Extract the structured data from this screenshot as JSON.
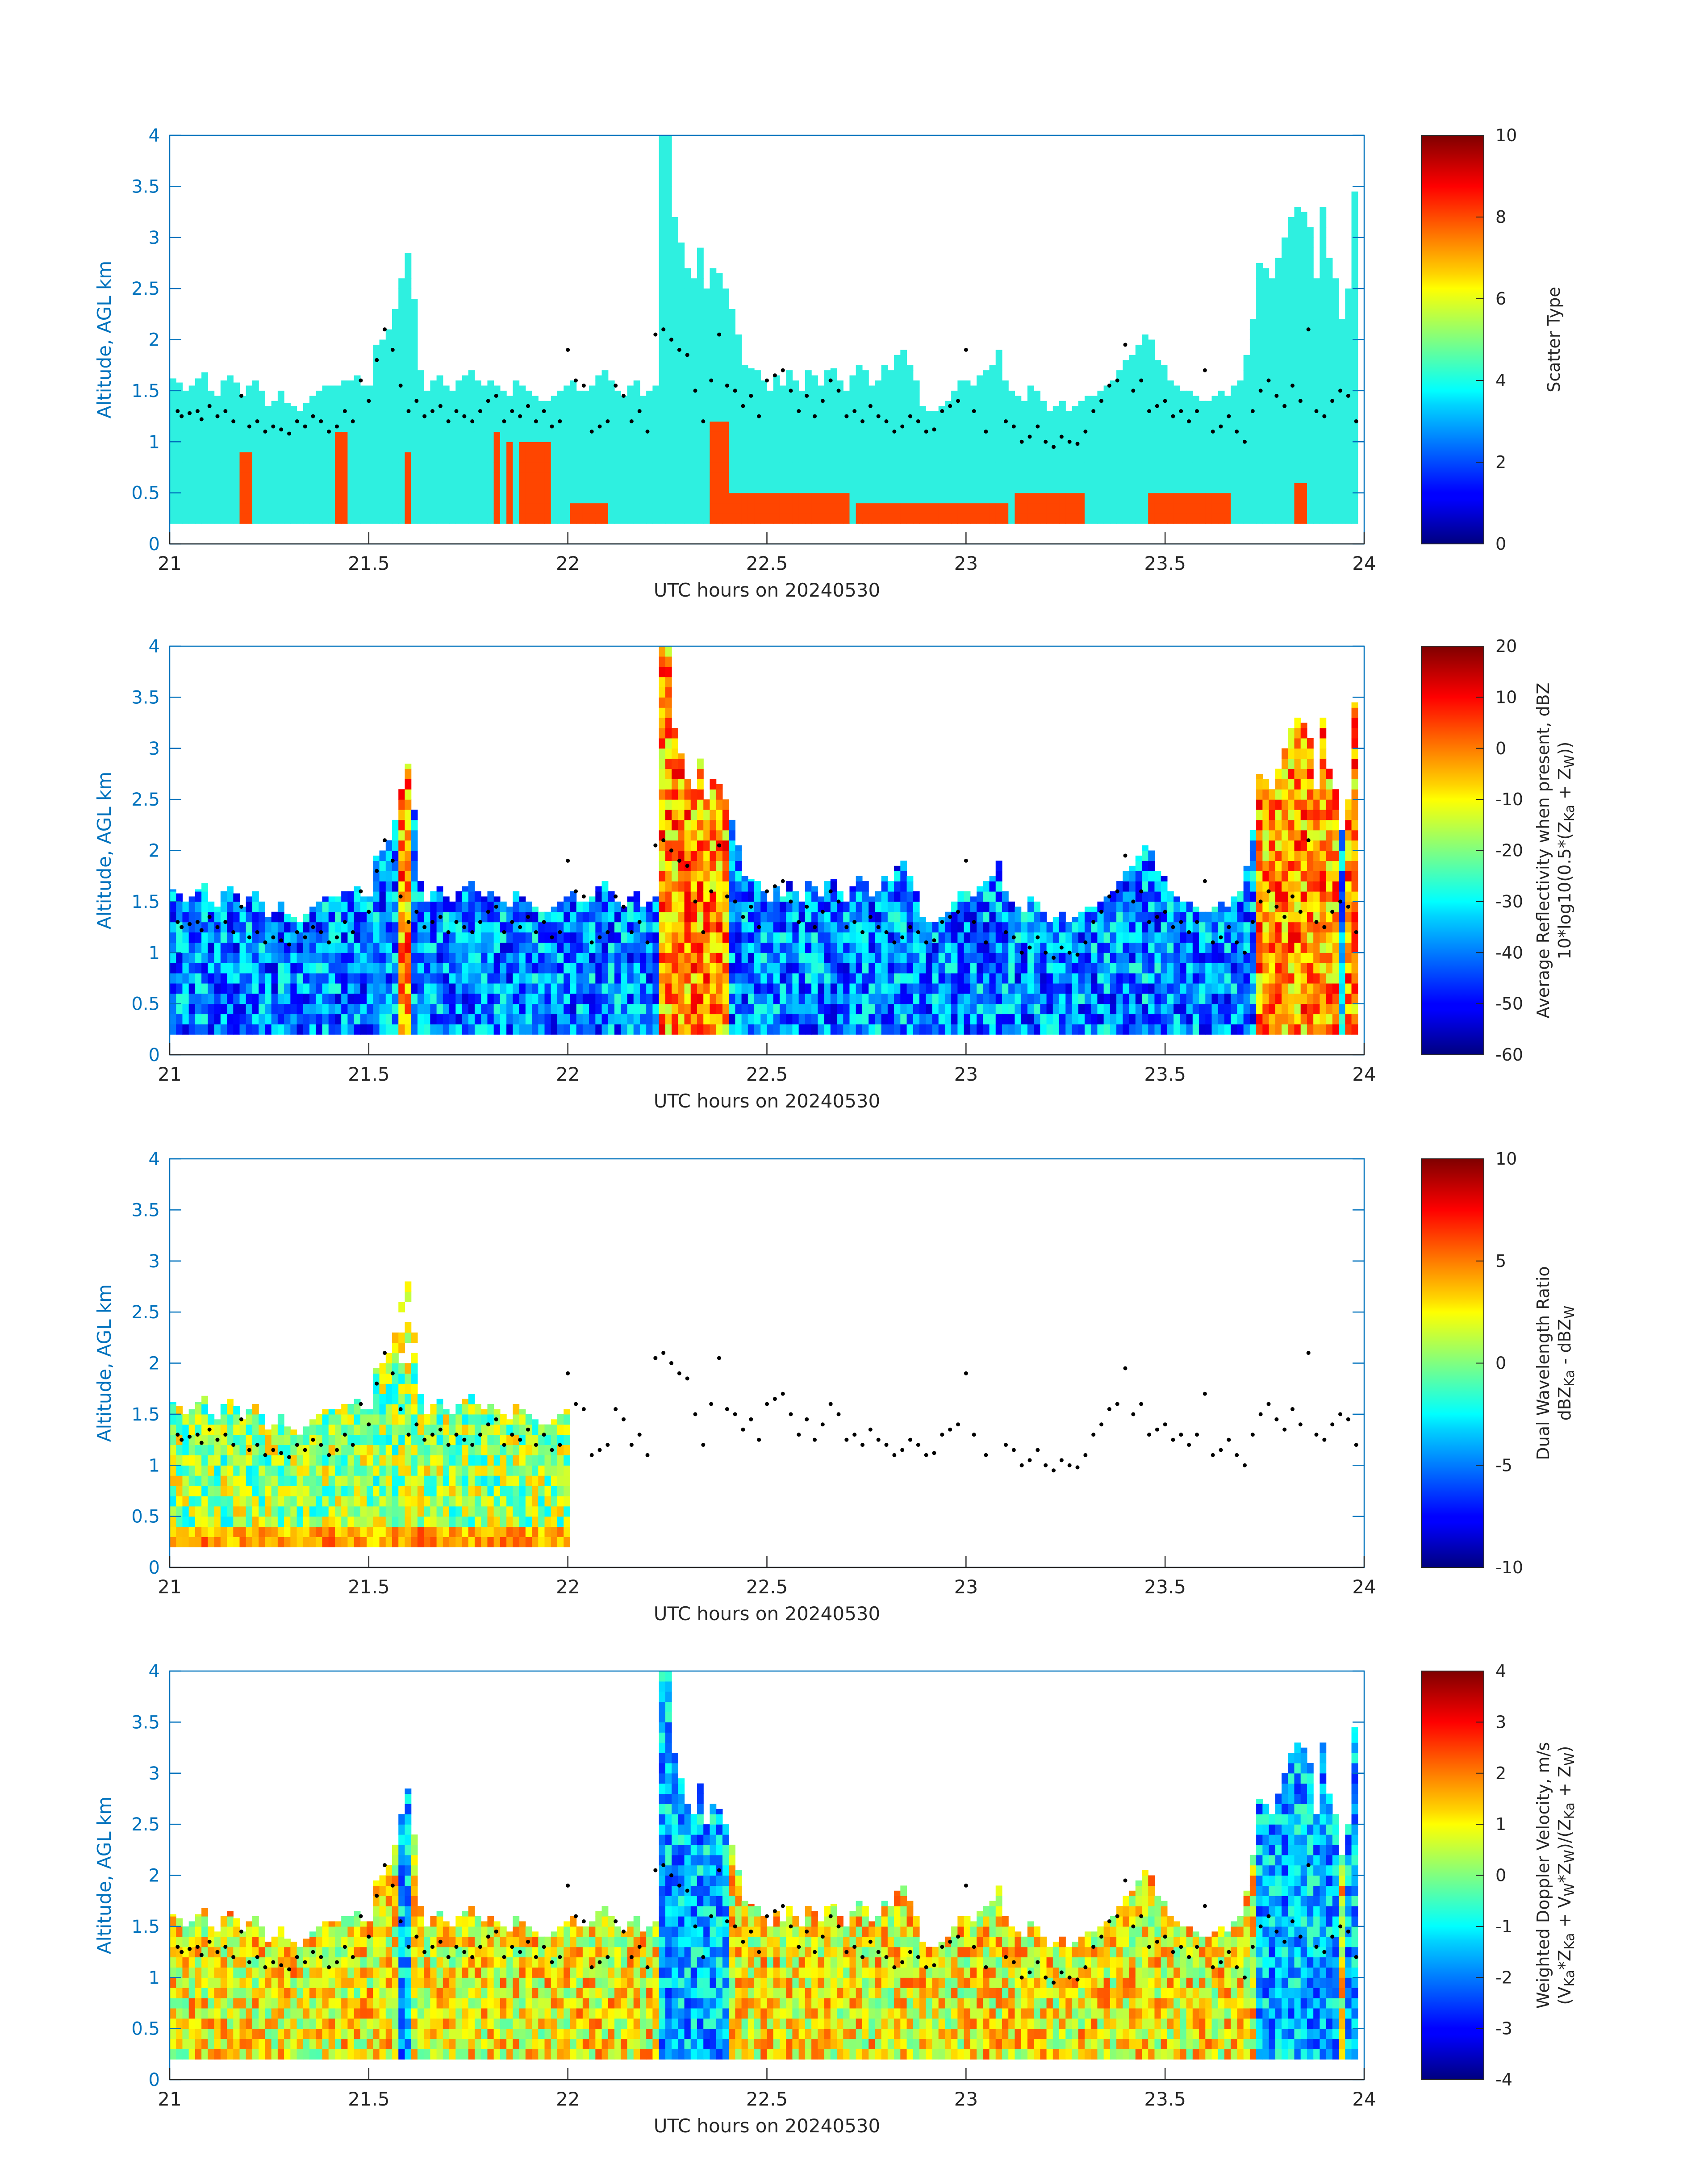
{
  "figure_title": "",
  "chart_data": [
    {
      "type": "heatmap",
      "title": "",
      "xlabel": "UTC hours on 20240530",
      "ylabel": "Altitude, AGL km",
      "xlim": [
        21,
        24
      ],
      "ylim": [
        0,
        4
      ],
      "xticks": [
        "21",
        "21.5",
        "22",
        "22.5",
        "23",
        "23.5",
        "24"
      ],
      "yticks": [
        "0",
        "0.5",
        "1",
        "1.5",
        "2",
        "2.5",
        "3",
        "3.5",
        "4"
      ],
      "colorbar": {
        "label_lines": [
          "Scatter Type"
        ],
        "range": [
          0,
          10
        ],
        "ticks": [
          "0",
          "2",
          "4",
          "6",
          "8",
          "10"
        ]
      },
      "field": "scatter_type",
      "dominant_classes": {
        "cloud": 4,
        "precipitation": 8
      }
    },
    {
      "type": "heatmap",
      "title": "",
      "xlabel": "UTC hours on 20240530",
      "ylabel": "Altitude, AGL km",
      "xlim": [
        21,
        24
      ],
      "ylim": [
        0,
        4
      ],
      "xticks": [
        "21",
        "21.5",
        "22",
        "22.5",
        "23",
        "23.5",
        "24"
      ],
      "yticks": [
        "0",
        "0.5",
        "1",
        "1.5",
        "2",
        "2.5",
        "3",
        "3.5",
        "4"
      ],
      "colorbar": {
        "label_lines": [
          "Average Reflectivity when present, dBZ",
          "10*log10(0.5*(Z",
          "Ka",
          " + Z",
          "W",
          "))"
        ],
        "range": [
          -60,
          20
        ],
        "ticks": [
          "-60",
          "-50",
          "-40",
          "-30",
          "-20",
          "-10",
          "0",
          "10",
          "20"
        ]
      },
      "field": "reflectivity"
    },
    {
      "type": "heatmap",
      "title": "",
      "xlabel": "UTC hours on 20240530",
      "ylabel": "Altitude, AGL km",
      "xlim": [
        21,
        24
      ],
      "ylim": [
        0,
        4
      ],
      "xticks": [
        "21",
        "21.5",
        "22",
        "22.5",
        "23",
        "23.5",
        "24"
      ],
      "yticks": [
        "0",
        "0.5",
        "1",
        "1.5",
        "2",
        "2.5",
        "3",
        "3.5",
        "4"
      ],
      "colorbar": {
        "label_lines": [
          "Dual Wavelength Ratio",
          "dBZ",
          "Ka",
          " - dBZ",
          "W"
        ],
        "range": [
          -10,
          10
        ],
        "ticks": [
          "-10",
          "-5",
          "0",
          "5",
          "10"
        ]
      },
      "field": "dual_wavelength_ratio",
      "data_end_hour": 22
    },
    {
      "type": "heatmap",
      "title": "",
      "xlabel": "UTC hours on 20240530",
      "ylabel": "Altitude, AGL km",
      "xlim": [
        21,
        24
      ],
      "ylim": [
        0,
        4
      ],
      "xticks": [
        "21",
        "21.5",
        "22",
        "22.5",
        "23",
        "23.5",
        "24"
      ],
      "yticks": [
        "0",
        "0.5",
        "1",
        "1.5",
        "2",
        "2.5",
        "3",
        "3.5",
        "4"
      ],
      "colorbar": {
        "label_lines": [
          "Weighted Doppler Velocity, m/s",
          "(V",
          "Ka",
          "*Z",
          "Ka",
          " + V",
          "W",
          "*Z",
          "W",
          ")/(Z",
          "Ka",
          " + Z",
          "W",
          ")"
        ],
        "range": [
          -4,
          4
        ],
        "ticks": [
          "-4",
          "-3",
          "-2",
          "-1",
          "0",
          "1",
          "2",
          "3",
          "4"
        ]
      },
      "field": "doppler_velocity"
    }
  ],
  "echo_top_km": [
    1.62,
    1.58,
    1.5,
    1.55,
    1.62,
    1.68,
    1.5,
    1.45,
    1.6,
    1.65,
    1.58,
    1.45,
    1.55,
    1.6,
    1.5,
    1.35,
    1.4,
    1.5,
    1.38,
    1.35,
    1.3,
    1.38,
    1.45,
    1.5,
    1.55,
    1.55,
    1.55,
    1.6,
    1.6,
    1.65,
    1.55,
    1.55,
    1.95,
    2.0,
    2.1,
    2.3,
    2.6,
    2.85,
    2.4,
    1.7,
    1.5,
    1.6,
    1.65,
    1.55,
    1.5,
    1.6,
    1.65,
    1.7,
    1.6,
    1.55,
    1.6,
    1.55,
    1.5,
    1.45,
    1.6,
    1.55,
    1.5,
    1.45,
    1.4,
    1.4,
    1.45,
    1.5,
    1.55,
    1.6,
    1.5,
    1.5,
    1.55,
    1.65,
    1.7,
    1.6,
    1.5,
    1.45,
    1.55,
    1.6,
    1.45,
    1.5,
    1.55,
    4.0,
    4.0,
    3.2,
    2.95,
    2.7,
    2.6,
    2.9,
    2.5,
    2.7,
    2.65,
    2.5,
    2.3,
    2.05,
    1.75,
    1.72,
    1.7,
    1.6,
    1.5,
    1.65,
    1.55,
    1.7,
    1.6,
    1.5,
    1.7,
    1.65,
    1.55,
    1.7,
    1.72,
    1.6,
    1.5,
    1.65,
    1.75,
    1.7,
    1.55,
    1.6,
    1.75,
    1.7,
    1.85,
    1.9,
    1.75,
    1.6,
    1.35,
    1.3,
    1.3,
    1.35,
    1.4,
    1.5,
    1.6,
    1.6,
    1.55,
    1.65,
    1.7,
    1.75,
    1.9,
    1.6,
    1.5,
    1.45,
    1.4,
    1.55,
    1.5,
    1.4,
    1.3,
    1.35,
    1.4,
    1.3,
    1.35,
    1.4,
    1.45,
    1.45,
    1.5,
    1.55,
    1.6,
    1.7,
    1.8,
    1.85,
    1.95,
    2.05,
    2.0,
    1.8,
    1.75,
    1.6,
    1.55,
    1.5,
    1.5,
    1.45,
    1.4,
    1.4,
    1.45,
    1.5,
    1.45,
    1.55,
    1.6,
    1.85,
    2.2,
    2.75,
    2.7,
    2.6,
    2.8,
    3.0,
    3.2,
    3.3,
    3.25,
    3.1,
    2.6,
    3.3,
    2.8,
    2.6,
    2.2,
    2.5,
    3.45,
    3.55
  ],
  "echo_base_km": [
    0.2,
    0.2,
    0.2,
    0.2,
    0.2,
    0.2,
    0.2,
    0.2,
    0.2,
    0.2,
    0.2,
    0.2,
    0.2,
    0.2,
    0.2,
    0.2,
    0.2,
    0.2,
    0.2,
    0.2,
    0.2,
    0.2,
    0.2,
    0.2,
    0.2,
    0.2,
    0.2,
    0.2,
    0.2,
    0.2,
    0.2,
    0.2,
    0.2,
    0.2,
    0.2,
    0.2,
    0.2,
    0.2,
    0.2,
    0.2,
    0.2,
    0.2,
    0.2,
    0.2,
    0.2,
    0.2,
    0.2,
    0.2,
    0.2,
    0.2,
    0.2,
    0.2,
    0.2,
    0.2,
    0.2,
    0.2,
    0.2,
    0.2,
    0.2,
    0.2,
    0.2,
    0.2,
    0.2,
    0.2,
    0.2,
    0.2,
    0.2,
    0.2,
    0.2,
    0.2,
    0.2,
    0.2,
    0.2,
    0.2,
    0.2,
    0.2,
    0.2,
    0.2,
    0.2,
    0.2,
    0.2,
    0.2,
    0.2,
    0.2,
    0.2,
    0.2,
    0.2,
    0.2,
    0.2,
    0.2,
    0.2,
    0.2,
    0.2,
    0.2,
    0.2,
    0.2,
    0.2,
    0.2,
    0.2,
    0.2,
    0.2,
    0.2,
    0.2,
    0.2,
    0.2,
    0.2,
    0.2,
    0.2,
    0.2,
    0.2,
    0.2,
    0.2,
    0.2,
    0.2,
    0.2,
    0.2,
    0.2,
    0.2,
    0.2,
    0.2,
    0.2,
    0.2,
    0.2,
    0.2,
    0.2,
    0.2,
    0.2,
    0.2,
    0.2,
    0.2,
    0.2,
    0.2,
    0.2,
    0.2,
    0.2,
    0.2,
    0.2,
    0.2,
    0.2,
    0.2,
    0.2,
    0.2,
    0.2,
    0.2,
    0.2,
    0.2,
    0.2,
    0.2,
    0.2,
    0.2,
    0.2,
    0.2,
    0.2,
    0.2,
    0.2,
    0.2,
    0.2,
    0.2,
    0.2,
    0.2,
    0.2,
    0.2,
    0.2,
    0.2,
    0.2,
    0.2,
    0.2,
    0.2,
    0.2,
    0.2,
    0.2,
    0.2,
    0.2,
    0.2,
    0.2,
    0.2,
    0.2,
    0.2,
    0.2,
    0.2,
    0.2,
    0.2,
    0.2,
    0.2,
    0.2,
    0.2,
    0.2
  ],
  "precip_columns": [
    {
      "start": 21.18,
      "end": 21.21,
      "top": 0.8
    },
    {
      "start": 21.42,
      "end": 21.44,
      "top": 1.0
    },
    {
      "start": 21.59,
      "end": 21.61,
      "top": 0.85
    },
    {
      "start": 21.81,
      "end": 21.83,
      "top": 1.0
    },
    {
      "start": 21.84,
      "end": 21.86,
      "top": 0.9
    },
    {
      "start": 21.87,
      "end": 21.89,
      "top": 0.95
    },
    {
      "start": 21.9,
      "end": 21.92,
      "top": 0.9
    },
    {
      "start": 21.93,
      "end": 21.95,
      "top": 0.95
    },
    {
      "start": 22.0,
      "end": 22.1,
      "top": 0.35
    },
    {
      "start": 22.35,
      "end": 22.4,
      "top": 1.2
    },
    {
      "start": 22.4,
      "end": 22.7,
      "top": 0.45
    },
    {
      "start": 22.72,
      "end": 23.1,
      "top": 0.4
    },
    {
      "start": 23.12,
      "end": 23.3,
      "top": 0.45
    },
    {
      "start": 23.46,
      "end": 23.66,
      "top": 0.5
    },
    {
      "start": 23.83,
      "end": 23.85,
      "top": 0.55
    }
  ],
  "cloud_base_points": {
    "hours": [
      21.02,
      21.03,
      21.05,
      21.07,
      21.08,
      21.1,
      21.12,
      21.14,
      21.16,
      21.18,
      21.2,
      21.22,
      21.24,
      21.26,
      21.28,
      21.3,
      21.32,
      21.34,
      21.36,
      21.38,
      21.4,
      21.42,
      21.44,
      21.46,
      21.48,
      21.5,
      21.52,
      21.54,
      21.56,
      21.58,
      21.6,
      21.62,
      21.64,
      21.66,
      21.68,
      21.7,
      21.72,
      21.74,
      21.76,
      21.78,
      21.8,
      21.82,
      21.84,
      21.86,
      21.88,
      21.9,
      21.92,
      21.94,
      21.96,
      21.98,
      22.0,
      22.02,
      22.04,
      22.06,
      22.08,
      22.1,
      22.12,
      22.14,
      22.16,
      22.18,
      22.2,
      22.22,
      22.24,
      22.26,
      22.28,
      22.3,
      22.32,
      22.34,
      22.36,
      22.38,
      22.4,
      22.42,
      22.44,
      22.46,
      22.48,
      22.5,
      22.52,
      22.54,
      22.56,
      22.58,
      22.6,
      22.62,
      22.64,
      22.66,
      22.68,
      22.7,
      22.72,
      22.74,
      22.76,
      22.78,
      22.8,
      22.82,
      22.84,
      22.86,
      22.88,
      22.9,
      22.92,
      22.94,
      22.96,
      22.98,
      23.0,
      23.02,
      23.05,
      23.1,
      23.12,
      23.14,
      23.16,
      23.18,
      23.2,
      23.22,
      23.24,
      23.26,
      23.28,
      23.3,
      23.32,
      23.34,
      23.36,
      23.38,
      23.4,
      23.42,
      23.44,
      23.46,
      23.48,
      23.5,
      23.52,
      23.54,
      23.56,
      23.58,
      23.6,
      23.62,
      23.64,
      23.66,
      23.68,
      23.7,
      23.72,
      23.74,
      23.76,
      23.78,
      23.8,
      23.82,
      23.84,
      23.86,
      23.88,
      23.9,
      23.92,
      23.94,
      23.96,
      23.98
    ],
    "km": [
      1.3,
      1.25,
      1.28,
      1.3,
      1.22,
      1.35,
      1.25,
      1.3,
      1.2,
      1.45,
      1.15,
      1.2,
      1.1,
      1.15,
      1.12,
      1.08,
      1.2,
      1.15,
      1.25,
      1.2,
      1.1,
      1.15,
      1.3,
      1.2,
      1.6,
      1.4,
      1.8,
      2.1,
      1.9,
      1.55,
      1.3,
      1.4,
      1.25,
      1.3,
      1.35,
      1.2,
      1.3,
      1.25,
      1.2,
      1.3,
      1.4,
      1.45,
      1.2,
      1.3,
      1.25,
      1.35,
      1.2,
      1.3,
      1.15,
      1.2,
      1.9,
      1.6,
      1.55,
      1.1,
      1.15,
      1.2,
      1.55,
      1.45,
      1.2,
      1.3,
      1.1,
      2.05,
      2.1,
      2.0,
      1.9,
      1.85,
      1.5,
      1.2,
      1.6,
      2.05,
      1.55,
      1.5,
      1.35,
      1.45,
      1.25,
      1.6,
      1.65,
      1.7,
      1.5,
      1.3,
      1.45,
      1.25,
      1.4,
      1.6,
      1.5,
      1.25,
      1.3,
      1.2,
      1.35,
      1.25,
      1.2,
      1.1,
      1.15,
      1.25,
      1.2,
      1.1,
      1.12,
      1.3,
      1.35,
      1.4,
      1.9,
      1.3,
      1.1,
      1.2,
      1.15,
      1.0,
      1.05,
      1.15,
      1.0,
      0.95,
      1.05,
      1.0,
      0.98,
      1.1,
      1.3,
      1.4,
      1.55,
      1.6,
      1.95,
      1.5,
      1.6,
      1.3,
      1.35,
      1.4,
      1.25,
      1.3,
      1.2,
      1.3,
      1.7,
      1.1,
      1.15,
      1.25,
      1.1,
      1.0,
      1.3,
      1.5,
      1.6,
      1.45,
      1.35,
      1.55,
      1.4,
      2.1,
      1.3,
      1.25,
      1.4,
      1.5,
      1.45,
      1.2
    ]
  }
}
